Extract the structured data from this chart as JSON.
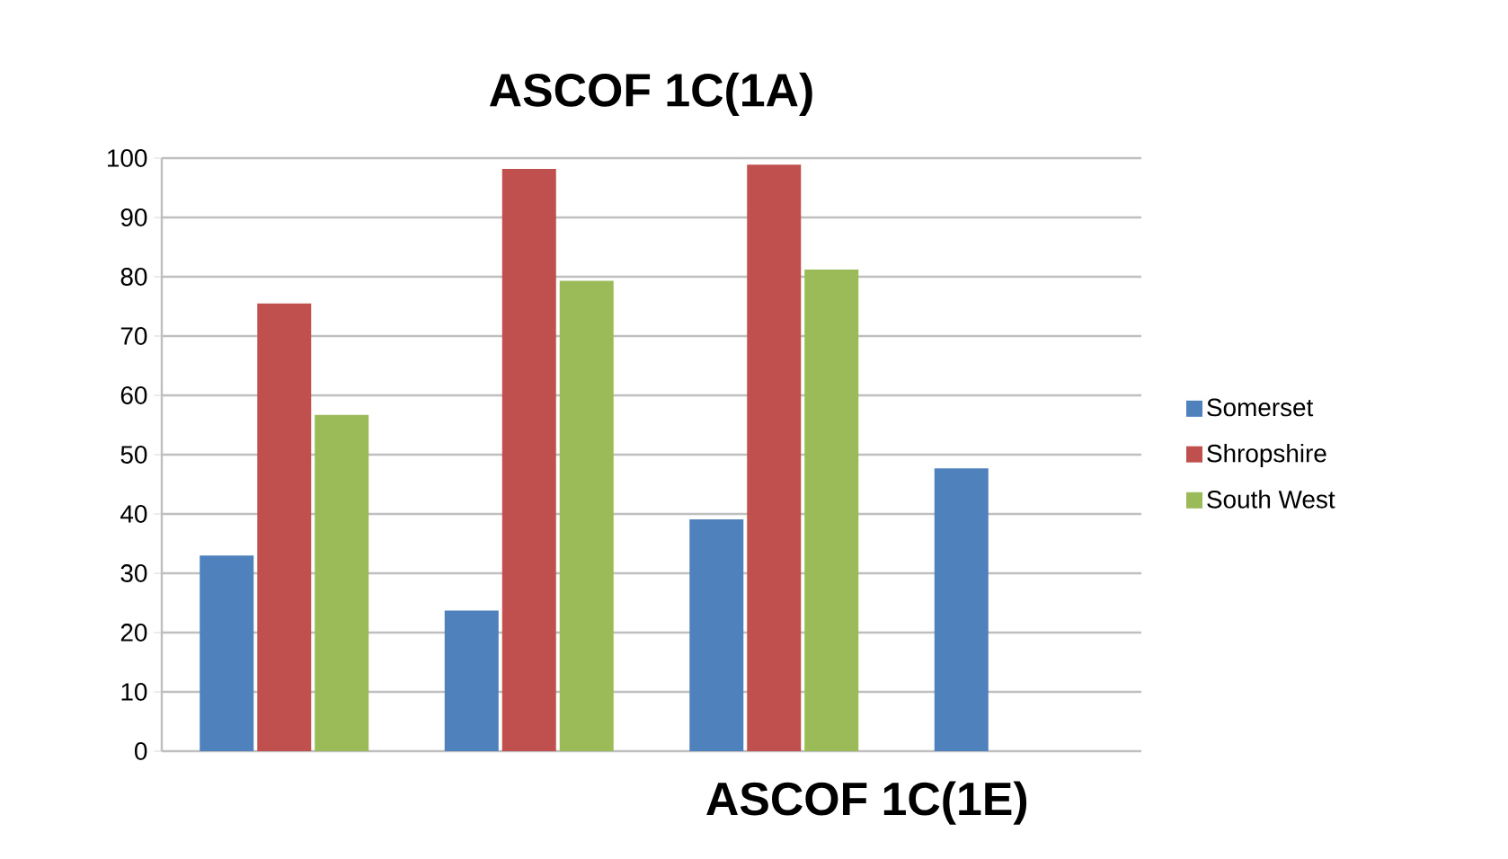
{
  "chart_data": {
    "type": "bar",
    "title": "ASCOF 1C(1A)",
    "categories": [
      null,
      null,
      null,
      null
    ],
    "series": [
      {
        "name": "Somerset",
        "color": "#4f81bd",
        "values": [
          33,
          23.7,
          39.1,
          47.7
        ]
      },
      {
        "name": "Shropshire",
        "color": "#c0504d",
        "values": [
          75.5,
          98.2,
          98.9,
          null
        ]
      },
      {
        "name": "South West",
        "color": "#9bbb59",
        "values": [
          56.7,
          79.3,
          81.2,
          null
        ]
      }
    ],
    "ylim": [
      0,
      100
    ],
    "yticks": [
      0,
      10,
      20,
      30,
      40,
      50,
      60,
      70,
      80,
      90,
      100
    ],
    "grid": "y",
    "legend": "right",
    "annotations": [
      "ASCOF 1C(1E)"
    ]
  }
}
